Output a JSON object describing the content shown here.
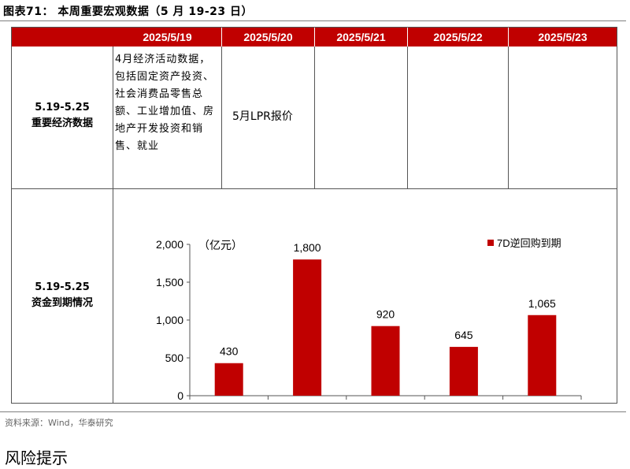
{
  "figure_title": "图表71：  本周重要宏观数据（5 月 19-23 日）",
  "table": {
    "headers": [
      "2025/5/19",
      "2025/5/20",
      "2025/5/21",
      "2025/5/22",
      "2025/5/23"
    ],
    "rows": [
      {
        "label_line1": "5.19-5.25",
        "label_line2": "重要经济数据",
        "cells": [
          "4月经济活动数据，包括固定资产投资、社会消费品零售总额、工业增加值、房地产开发投资和销售、就业",
          "5月LPR报价",
          "",
          "",
          ""
        ]
      },
      {
        "label_line1": "5.19-5.25",
        "label_line2": "资金到期情况"
      }
    ]
  },
  "chart_data": {
    "type": "bar",
    "unit_label": "（亿元）",
    "categories": [
      "2025-05-19",
      "2025-05-20",
      "2025-05-21",
      "2025-05-22",
      "2025-05-23"
    ],
    "series": [
      {
        "name": "7D逆回购到期",
        "values": [
          430,
          1800,
          920,
          645,
          1065
        ],
        "color": "#c00000"
      }
    ],
    "value_labels": [
      "430",
      "1,800",
      "920",
      "645",
      "1,065"
    ],
    "ylim": [
      0,
      2000
    ],
    "yticks": [
      0,
      500,
      1000,
      1500,
      2000
    ],
    "ytick_labels": [
      "0",
      "500",
      "1,000",
      "1,500",
      "2,000"
    ],
    "legend_position": "top-right",
    "grid": false
  },
  "source": "资料来源：Wind，华泰研究",
  "risk_heading": "风险提示"
}
